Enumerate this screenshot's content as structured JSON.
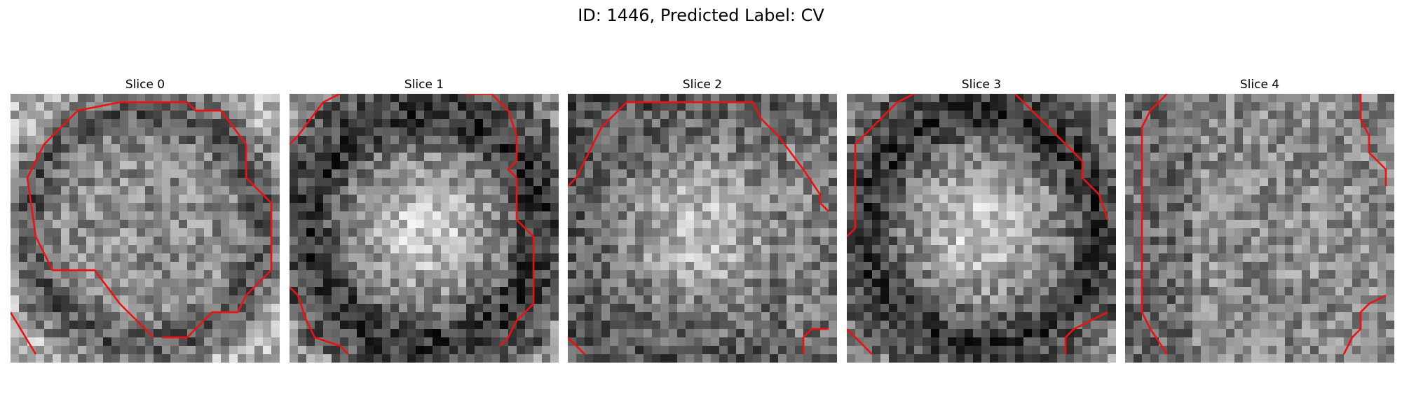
{
  "figure": {
    "title": "ID: 1446, Predicted Label: CV",
    "contour_color": "#ee1111"
  },
  "slices": [
    {
      "title": "Slice 0",
      "seed": 11,
      "pattern": "ring-fine",
      "contours": [
        [
          [
            17,
            29
          ],
          [
            13,
            25
          ],
          [
            10,
            21
          ],
          [
            5,
            21
          ],
          [
            3,
            17
          ],
          [
            2,
            10
          ],
          [
            4,
            6
          ],
          [
            6,
            4
          ],
          [
            8,
            2
          ],
          [
            13,
            1
          ],
          [
            21,
            1
          ],
          [
            22,
            2
          ],
          [
            25,
            2
          ],
          [
            28,
            6
          ],
          [
            28,
            10
          ],
          [
            31,
            13
          ],
          [
            31,
            21
          ],
          [
            28,
            24
          ],
          [
            27,
            26
          ],
          [
            24,
            26
          ],
          [
            21,
            29
          ],
          [
            18,
            29
          ]
        ],
        [
          [
            3,
            31
          ],
          [
            0,
            26
          ]
        ]
      ]
    },
    {
      "title": "Slice 1",
      "seed": 23,
      "pattern": "bright-center",
      "contours": [
        [
          [
            6,
            0
          ],
          [
            4,
            1
          ],
          [
            1,
            5
          ],
          [
            0,
            6
          ]
        ],
        [
          [
            21,
            0
          ],
          [
            24,
            0
          ],
          [
            26,
            2
          ],
          [
            27,
            5
          ],
          [
            27,
            8
          ],
          [
            26,
            9
          ],
          [
            27,
            10
          ],
          [
            27,
            15
          ],
          [
            29,
            17
          ],
          [
            29,
            25
          ],
          [
            27,
            27
          ],
          [
            26,
            29
          ],
          [
            25,
            30
          ]
        ],
        [
          [
            7,
            31
          ],
          [
            6,
            30
          ],
          [
            3,
            29
          ],
          [
            2,
            27
          ],
          [
            1,
            24
          ],
          [
            0,
            23
          ]
        ]
      ]
    },
    {
      "title": "Slice 2",
      "seed": 37,
      "pattern": "bright-blob",
      "contours": [
        [
          [
            0,
            11
          ],
          [
            1,
            10
          ],
          [
            2,
            8
          ],
          [
            3,
            6
          ],
          [
            4,
            4
          ],
          [
            5,
            3
          ],
          [
            6,
            2
          ],
          [
            7,
            1
          ],
          [
            22,
            1
          ],
          [
            23,
            3
          ],
          [
            25,
            5
          ],
          [
            28,
            9
          ],
          [
            30,
            12
          ],
          [
            30,
            13
          ],
          [
            31,
            14
          ]
        ],
        [
          [
            2,
            31
          ],
          [
            0,
            29
          ]
        ],
        [
          [
            28,
            31
          ],
          [
            28,
            29
          ],
          [
            29,
            28
          ],
          [
            31,
            28
          ]
        ]
      ]
    },
    {
      "title": "Slice 3",
      "seed": 53,
      "pattern": "bright-center",
      "contours": [
        [
          [
            8,
            0
          ],
          [
            6,
            1
          ],
          [
            4,
            3
          ],
          [
            2,
            5
          ],
          [
            1,
            6
          ],
          [
            1,
            16
          ],
          [
            0,
            17
          ]
        ],
        [
          [
            20,
            0
          ],
          [
            22,
            2
          ],
          [
            24,
            4
          ],
          [
            26,
            6
          ],
          [
            28,
            8
          ],
          [
            28,
            10
          ],
          [
            30,
            12
          ],
          [
            31,
            15
          ]
        ],
        [
          [
            3,
            31
          ],
          [
            1,
            29
          ],
          [
            0,
            28
          ]
        ],
        [
          [
            26,
            31
          ],
          [
            26,
            29
          ],
          [
            27,
            28
          ],
          [
            29,
            27
          ],
          [
            31,
            26
          ]
        ]
      ]
    },
    {
      "title": "Slice 4",
      "seed": 71,
      "pattern": "dark-left",
      "contours": [
        [
          [
            5,
            0
          ],
          [
            3,
            2
          ],
          [
            2,
            4
          ],
          [
            2,
            26
          ],
          [
            3,
            28
          ],
          [
            5,
            31
          ]
        ],
        [
          [
            28,
            0
          ],
          [
            28,
            3
          ],
          [
            29,
            5
          ],
          [
            29,
            7
          ],
          [
            31,
            9
          ],
          [
            31,
            11
          ]
        ],
        [
          [
            26,
            31
          ],
          [
            27,
            29
          ],
          [
            28,
            28
          ],
          [
            28,
            26
          ],
          [
            29,
            25
          ],
          [
            31,
            24
          ]
        ]
      ]
    }
  ]
}
